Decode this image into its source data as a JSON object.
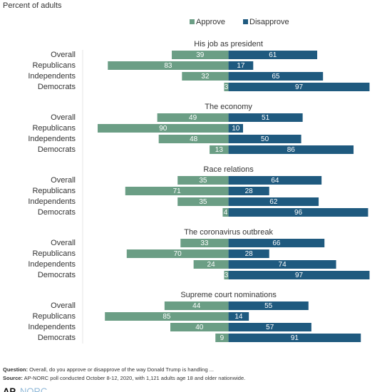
{
  "chart_data": {
    "type": "diverging_bar",
    "subtitle": "Percent of adults",
    "series": [
      {
        "name": "Approve",
        "color": "#6b9e85"
      },
      {
        "name": "Disapprove",
        "color": "#1f5a7f"
      }
    ],
    "panels": [
      {
        "title": "His job as president",
        "categories": [
          "Overall",
          "Republicans",
          "Independents",
          "Democrats"
        ],
        "series": [
          {
            "values": [
              39,
              83,
              32,
              3
            ]
          },
          {
            "values": [
              61,
              17,
              65,
              97
            ]
          }
        ]
      },
      {
        "title": "The economy",
        "categories": [
          "Overall",
          "Republicans",
          "Independents",
          "Democrats"
        ],
        "series": [
          {
            "values": [
              49,
              90,
              48,
              13
            ]
          },
          {
            "values": [
              51,
              10,
              50,
              86
            ]
          }
        ]
      },
      {
        "title": "Race relations",
        "categories": [
          "Overall",
          "Republicans",
          "Independents",
          "Democrats"
        ],
        "series": [
          {
            "values": [
              35,
              71,
              35,
              4
            ]
          },
          {
            "values": [
              64,
              28,
              62,
              96
            ]
          }
        ]
      },
      {
        "title": "The coronavirus outbreak",
        "categories": [
          "Overall",
          "Republicans",
          "Independents",
          "Democrats"
        ],
        "series": [
          {
            "values": [
              33,
              70,
              24,
              3
            ]
          },
          {
            "values": [
              66,
              28,
              74,
              97
            ]
          }
        ]
      },
      {
        "title": "Supreme court nominations",
        "categories": [
          "Overall",
          "Republicans",
          "Independents",
          "Democrats"
        ],
        "series": [
          {
            "values": [
              44,
              85,
              40,
              9
            ]
          },
          {
            "values": [
              55,
              14,
              57,
              91
            ]
          }
        ]
      }
    ]
  },
  "footer": {
    "question_label": "Question:",
    "question": "Overall, do you approve or disapprove of the way Donald Trump is handling ...",
    "source_label": "Source:",
    "source": "AP-NORC poll conducted October 8-12, 2020, with 1,121 adults age 18 and older nationwide.",
    "logo_ap": "AP",
    "logo_norc": "NORC"
  }
}
